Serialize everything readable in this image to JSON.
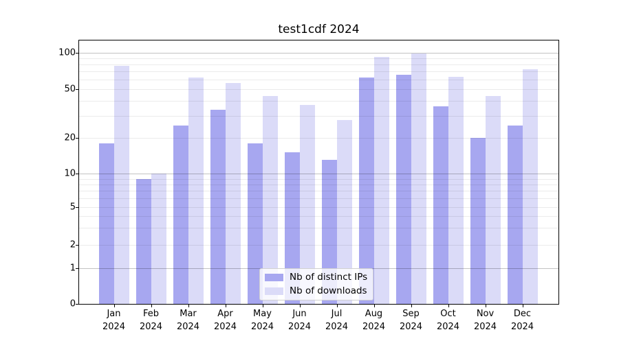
{
  "chart_data": {
    "type": "bar",
    "title": "test1cdf 2024",
    "categories": [
      "Jan 2024",
      "Feb 2024",
      "Mar 2024",
      "Apr 2024",
      "May 2024",
      "Jun 2024",
      "Jul 2024",
      "Aug 2024",
      "Sep 2024",
      "Oct 2024",
      "Nov 2024",
      "Dec 2024"
    ],
    "x_months": [
      "Jan",
      "Feb",
      "Mar",
      "Apr",
      "May",
      "Jun",
      "Jul",
      "Aug",
      "Sep",
      "Oct",
      "Nov",
      "Dec"
    ],
    "x_year": "2024",
    "series": [
      {
        "name": "Nb of distinct IPs",
        "color": "#a7a7f0",
        "values": [
          18,
          9,
          25,
          34,
          18,
          15,
          13,
          62,
          66,
          36,
          20,
          25
        ]
      },
      {
        "name": "Nb of downloads",
        "color": "#dbdbf8",
        "values": [
          78,
          10,
          62,
          56,
          44,
          37,
          28,
          92,
          98,
          63,
          44,
          73
        ]
      }
    ],
    "yticks": [
      0,
      1,
      2,
      5,
      10,
      20,
      50,
      100
    ],
    "ylim": [
      0,
      126
    ],
    "yscale": "symlog",
    "grid": "horizontal; dark lines at 1, 10, 100; light lines at 2-9 and 20-90; none below 1",
    "legend_position": "lower center"
  },
  "colors": {
    "background": "#ffffff",
    "axis": "#000000",
    "major_grid": "rgba(0,0,0,0.24)",
    "minor_grid": "rgba(0,0,0,0.08)",
    "text": "#000000"
  }
}
